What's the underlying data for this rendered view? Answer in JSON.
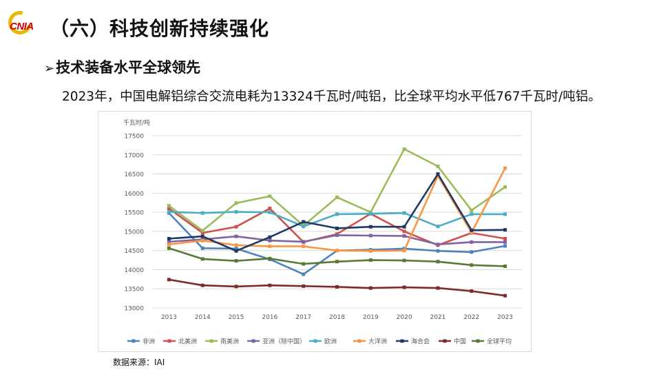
{
  "logo": {
    "text": "CNIA"
  },
  "header": {
    "title": "（六）科技创新持续强化"
  },
  "section": {
    "heading": "技术装备水平全球领先"
  },
  "description": "2023年，中国电解铝综合交流电耗为13324千瓦时/吨铝，比全球平均水平低767千瓦时/吨铝。",
  "source": "数据来源：IAI",
  "colors": {
    "africa": "#4f81bd",
    "north_america": "#d0504c",
    "south_america": "#9bbb59",
    "asia": "#8064a2",
    "europe": "#4bacc6",
    "oceania": "#f79646",
    "gcc": "#1f3864",
    "china": "#7f2a2a",
    "global": "#5a7a34"
  },
  "chart_data": {
    "type": "line",
    "ylabel": "千瓦时/吨",
    "ylim": [
      13000,
      17500
    ],
    "yticks": [
      13000,
      13500,
      14000,
      14500,
      15000,
      15500,
      16000,
      16500,
      17000,
      17500
    ],
    "grid": true,
    "legend_position": "bottom",
    "x": [
      "2013",
      "2014",
      "2015",
      "2016",
      "2017",
      "2018",
      "2019",
      "2020",
      "2021",
      "2022",
      "2023"
    ],
    "series": [
      {
        "name": "非洲",
        "color_key": "africa",
        "values": [
          15480,
          14560,
          14550,
          14270,
          13880,
          14500,
          14520,
          14550,
          14490,
          14460,
          14620
        ]
      },
      {
        "name": "北美洲",
        "color_key": "north_america",
        "values": [
          15600,
          14960,
          15120,
          15600,
          14720,
          14930,
          15460,
          15000,
          14640,
          14960,
          14810
        ]
      },
      {
        "name": "南美洲",
        "color_key": "south_america",
        "values": [
          15670,
          15020,
          15740,
          15920,
          15150,
          15890,
          15500,
          17150,
          16700,
          15550,
          16160
        ]
      },
      {
        "name": "亚洲（除中国）",
        "color_key": "asia",
        "values": [
          14730,
          14790,
          14870,
          14760,
          14730,
          14900,
          14890,
          14880,
          14660,
          14720,
          14720
        ]
      },
      {
        "name": "欧洲",
        "color_key": "europe",
        "values": [
          15510,
          15480,
          15510,
          15500,
          15130,
          15450,
          15460,
          15480,
          15130,
          15450,
          15450
        ]
      },
      {
        "name": "大洋洲",
        "color_key": "oceania",
        "values": [
          14660,
          14760,
          14640,
          14610,
          14610,
          14500,
          14490,
          14500,
          16450,
          14970,
          16650
        ]
      },
      {
        "name": "海合会",
        "color_key": "gcc",
        "values": [
          14810,
          14870,
          14490,
          14850,
          15250,
          15080,
          15120,
          15120,
          16500,
          15030,
          15040
        ]
      },
      {
        "name": "中国",
        "color_key": "china",
        "values": [
          13740,
          13590,
          13560,
          13590,
          13570,
          13550,
          13520,
          13540,
          13520,
          13440,
          13320
        ]
      },
      {
        "name": "全球平均",
        "color_key": "global",
        "values": [
          14560,
          14280,
          14230,
          14290,
          14150,
          14210,
          14250,
          14240,
          14210,
          14120,
          14090
        ]
      }
    ]
  }
}
